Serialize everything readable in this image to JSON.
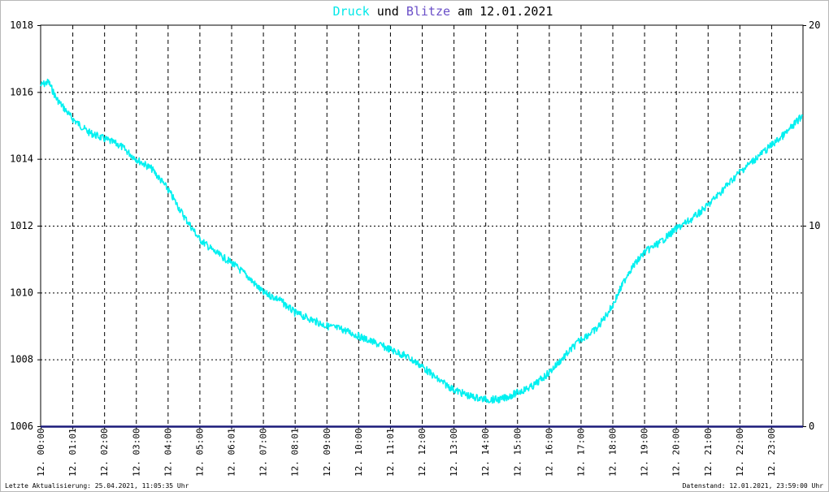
{
  "title": {
    "part1": "Druck",
    "part2": " und ",
    "part3": "Blitze",
    "part4": " am 12.01.2021",
    "color_druck": "#00e8e8",
    "color_blitze": "#6a4fc8"
  },
  "footer": {
    "left": "Letzte Aktualisierung: 25.04.2021, 11:05:35 Uhr",
    "right": "Datenstand: 12.01.2021, 23:59:00 Uhr"
  },
  "chart_data": {
    "type": "line",
    "title": "Druck und Blitze am 12.01.2021",
    "x_tick_labels": [
      "12. 00:00",
      "12. 01:01",
      "12. 02:00",
      "12. 03:00",
      "12. 04:00",
      "12. 05:00",
      "12. 06:01",
      "12. 07:00",
      "12. 08:01",
      "12. 09:00",
      "12. 10:00",
      "12. 11:01",
      "12. 12:00",
      "12. 13:00",
      "12. 14:00",
      "12. 15:00",
      "12. 16:00",
      "12. 17:00",
      "12. 18:00",
      "12. 19:00",
      "12. 20:00",
      "12. 21:00",
      "12. 22:00",
      "12. 23:00"
    ],
    "xlim_hours": [
      0,
      24
    ],
    "y_left": {
      "ticks": [
        1006,
        1008,
        1010,
        1012,
        1014,
        1016,
        1018
      ],
      "lim": [
        1006,
        1018
      ]
    },
    "y_right": {
      "ticks": [
        0,
        10,
        20
      ],
      "lim": [
        0,
        20
      ]
    },
    "grid": true,
    "series": [
      {
        "name": "Druck",
        "axis": "left",
        "color": "#00f0f0",
        "hours": [
          0.0,
          0.25,
          0.5,
          1.0,
          1.5,
          2.0,
          2.5,
          3.0,
          3.5,
          4.0,
          4.5,
          5.0,
          5.5,
          6.0,
          6.5,
          7.0,
          7.5,
          8.0,
          8.5,
          9.0,
          9.5,
          10.0,
          10.5,
          11.0,
          11.5,
          12.0,
          12.5,
          13.0,
          13.5,
          14.0,
          14.5,
          15.0,
          15.5,
          16.0,
          16.5,
          17.0,
          17.5,
          18.0,
          18.5,
          19.0,
          19.5,
          20.0,
          20.5,
          21.0,
          21.5,
          22.0,
          22.5,
          23.0,
          23.5,
          23.98
        ],
        "values": [
          1016.2,
          1016.3,
          1015.8,
          1015.2,
          1014.8,
          1014.6,
          1014.4,
          1014.0,
          1013.7,
          1013.1,
          1012.3,
          1011.6,
          1011.2,
          1010.9,
          1010.5,
          1010.0,
          1009.8,
          1009.4,
          1009.2,
          1009.0,
          1008.9,
          1008.7,
          1008.5,
          1008.3,
          1008.1,
          1007.8,
          1007.4,
          1007.1,
          1006.9,
          1006.8,
          1006.8,
          1007.0,
          1007.2,
          1007.6,
          1008.1,
          1008.6,
          1008.9,
          1009.6,
          1010.6,
          1011.2,
          1011.5,
          1011.9,
          1012.2,
          1012.6,
          1013.1,
          1013.6,
          1014.0,
          1014.4,
          1014.8,
          1015.3
        ]
      },
      {
        "name": "Blitze",
        "axis": "right",
        "color": "#1a1a7a",
        "hours": [
          0,
          24
        ],
        "values": [
          0,
          0
        ]
      }
    ]
  }
}
